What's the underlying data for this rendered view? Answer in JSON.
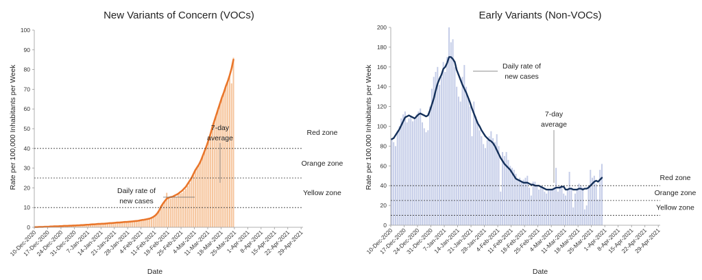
{
  "chart_data": [
    {
      "type": "bar",
      "title": "New Variants of Concern (VOCs)",
      "xlabel": "Date",
      "ylabel": "Rate per 100,000 Inhabitants per Week",
      "ylim": [
        0,
        100
      ],
      "yticks": [
        0,
        10,
        20,
        30,
        40,
        50,
        60,
        70,
        80,
        90,
        100
      ],
      "xticks": [
        "10-Dec-2020",
        "17-Dec-2020",
        "24-Dec-2020",
        "31-Dec-2020",
        "7-Jan-2021",
        "14-Jan-2021",
        "21-Jan-2021",
        "28-Jan-2021",
        "4-Feb-2021",
        "11-Feb-2021",
        "18-Feb-2021",
        "25-Feb-2021",
        "4-Mar-2021",
        "11-Mar-2021",
        "18-Mar-2021",
        "25-Mar-2021",
        "1-Apr-2021",
        "8-Apr-2021",
        "15-Apr-2021",
        "22-Apr-2021",
        "29-Apr-2021"
      ],
      "series": [
        {
          "name": "Daily rate of new cases",
          "type": "bar",
          "color": "#f6c49b",
          "x_start": 0,
          "values": [
            0.1,
            0.1,
            0.2,
            0.2,
            0.2,
            0.3,
            0.3,
            0.3,
            0.4,
            0.4,
            0.5,
            0.5,
            0.5,
            0.6,
            0.6,
            0.7,
            0.7,
            0.7,
            0.8,
            0.8,
            0.9,
            0.9,
            1.0,
            1.0,
            1.1,
            1.2,
            1.2,
            1.3,
            1.4,
            1.4,
            1.5,
            1.6,
            1.6,
            1.7,
            1.8,
            1.8,
            1.9,
            1.9,
            2.0,
            2.1,
            2.2,
            2.3,
            2.3,
            2.4,
            2.5,
            2.6,
            2.6,
            2.7,
            2.8,
            2.9,
            3.0,
            3.1,
            3.2,
            3.3,
            3.4,
            3.6,
            3.8,
            3.9,
            4.1,
            4.2,
            4.4,
            4.8,
            5.4,
            6.0,
            7.0,
            8.5,
            10.5,
            12.0,
            13.0,
            17.5,
            15.0,
            14.5,
            15.0,
            16.0,
            15.5,
            16.5,
            17.0,
            17.5,
            18.5,
            19.5,
            21.0,
            22.5,
            24.5,
            26.5,
            29.0,
            30.5,
            31.5,
            34.0,
            36.0,
            39.0,
            41.0,
            44.0,
            47.0,
            51.0,
            54.0,
            57.0,
            60.5,
            63.0,
            66.0,
            68.5,
            72.0,
            73.5,
            76.5,
            73.0,
            86.0
          ]
        },
        {
          "name": "7-day average",
          "type": "line",
          "color": "#e9762b",
          "x_start": 0,
          "values": [
            0.1,
            0.1,
            0.2,
            0.2,
            0.2,
            0.3,
            0.3,
            0.3,
            0.4,
            0.4,
            0.5,
            0.5,
            0.5,
            0.6,
            0.6,
            0.7,
            0.7,
            0.7,
            0.8,
            0.8,
            0.9,
            0.9,
            1.0,
            1.0,
            1.1,
            1.1,
            1.2,
            1.3,
            1.3,
            1.4,
            1.5,
            1.5,
            1.6,
            1.7,
            1.7,
            1.8,
            1.8,
            1.9,
            2.0,
            2.1,
            2.1,
            2.2,
            2.3,
            2.4,
            2.4,
            2.5,
            2.6,
            2.7,
            2.7,
            2.8,
            2.9,
            3.0,
            3.1,
            3.2,
            3.3,
            3.5,
            3.7,
            3.8,
            4.0,
            4.2,
            4.4,
            4.8,
            5.3,
            6.0,
            7.0,
            8.5,
            10.5,
            12.0,
            13.3,
            14.5,
            15.0,
            15.3,
            15.5,
            16.0,
            16.5,
            17.0,
            17.8,
            18.5,
            19.5,
            20.5,
            22.0,
            23.5,
            25.0,
            27.0,
            29.0,
            30.5,
            32.0,
            34.0,
            36.5,
            39.0,
            41.5,
            44.5,
            47.5,
            51.0,
            54.0,
            57.0,
            60.0,
            63.0,
            66.0,
            68.5,
            71.5,
            74.0,
            77.0,
            80.5,
            85.0
          ]
        }
      ],
      "annotations": {
        "daily_rate": [
          "Daily rate of",
          "new cases"
        ],
        "avg": [
          "7-day",
          "average"
        ]
      },
      "zones": [
        {
          "name": "Red zone",
          "threshold": 40
        },
        {
          "name": "Orange zone",
          "threshold": 25
        },
        {
          "name": "Yellow zone",
          "threshold": 10
        }
      ]
    },
    {
      "type": "bar",
      "title": "Early Variants (Non-VOCs)",
      "xlabel": "Date",
      "ylabel": "Rate per 100,000 Inhabitants per Week",
      "ylim": [
        0,
        200
      ],
      "yticks": [
        0,
        20,
        40,
        60,
        80,
        100,
        120,
        140,
        160,
        180,
        200
      ],
      "xticks": [
        "10-Dec-2020",
        "17-Dec-2020",
        "24-Dec-2020",
        "31-Dec-2020",
        "7-Jan-2021",
        "14-Jan-2021",
        "21-Jan-2021",
        "28-Jan-2021",
        "4-Feb-2021",
        "11-Feb-2021",
        "18-Feb-2021",
        "25-Feb-2021",
        "4-Mar-2021",
        "11-Mar-2021",
        "18-Mar-2021",
        "25-Mar-2021",
        "1-Apr-2021",
        "8-Apr-2021",
        "15-Apr-2021",
        "22-Apr-2021",
        "29-Apr-2021"
      ],
      "series": [
        {
          "name": "Daily rate of new cases",
          "type": "bar",
          "color": "#c5cde8",
          "x_start": 0,
          "values": [
            88,
            84,
            80,
            95,
            100,
            108,
            112,
            115,
            104,
            108,
            110,
            105,
            108,
            112,
            115,
            118,
            104,
            98,
            94,
            96,
            120,
            138,
            150,
            155,
            160,
            142,
            150,
            165,
            155,
            170,
            200,
            185,
            188,
            160,
            140,
            130,
            125,
            150,
            162,
            140,
            130,
            120,
            90,
            125,
            110,
            105,
            96,
            90,
            82,
            78,
            86,
            90,
            95,
            88,
            84,
            92,
            80,
            34,
            74,
            70,
            74,
            66,
            60,
            58,
            56,
            52,
            46,
            48,
            44,
            46,
            48,
            50,
            38,
            30,
            44,
            44,
            40,
            36,
            40,
            38,
            34,
            32,
            36,
            36,
            36,
            38,
            58,
            34,
            40,
            38,
            32,
            30,
            36,
            54,
            38,
            18,
            32,
            36,
            42,
            40,
            38,
            16,
            20,
            40,
            56,
            48,
            50,
            42,
            26,
            56,
            62
          ]
        },
        {
          "name": "7-day average",
          "type": "line",
          "color": "#14305a",
          "x_start": 0,
          "values": [
            87,
            88,
            91,
            94,
            97,
            101,
            105,
            109,
            110,
            111,
            110,
            109,
            108,
            110,
            112,
            113,
            112,
            111,
            110,
            111,
            116,
            122,
            128,
            136,
            143,
            148,
            152,
            158,
            160,
            164,
            170,
            170,
            168,
            165,
            157,
            152,
            147,
            142,
            138,
            134,
            129,
            124,
            118,
            113,
            108,
            103,
            100,
            96,
            93,
            90,
            88,
            86,
            85,
            83,
            80,
            76,
            72,
            68,
            65,
            62,
            60,
            58,
            56,
            53,
            50,
            47,
            46,
            45,
            44,
            43,
            43,
            43,
            42,
            41,
            41,
            40,
            40,
            40,
            39,
            38,
            37,
            36,
            36,
            36,
            36,
            37,
            38,
            38,
            38,
            39,
            39,
            36,
            36,
            37,
            37,
            36,
            36,
            36,
            37,
            37,
            36,
            37,
            37,
            38,
            40,
            42,
            44,
            45,
            44,
            46,
            48
          ]
        }
      ],
      "annotations": {
        "daily_rate": [
          "Daily rate of",
          "new cases"
        ],
        "avg": [
          "7-day",
          "average"
        ]
      },
      "zones": [
        {
          "name": "Red zone",
          "threshold": 40
        },
        {
          "name": "Orange zone",
          "threshold": 25
        },
        {
          "name": "Yellow zone",
          "threshold": 10
        }
      ]
    }
  ]
}
